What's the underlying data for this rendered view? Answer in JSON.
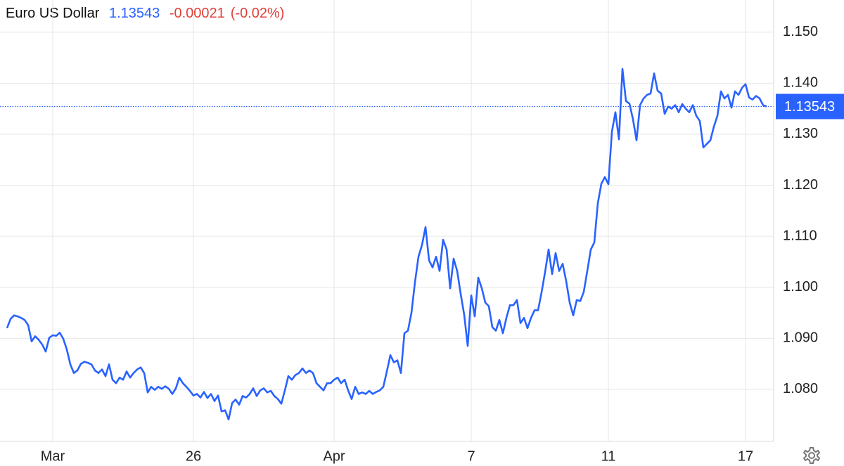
{
  "chart_data": {
    "type": "line",
    "title": "Euro US Dollar",
    "last_value": 1.13543,
    "change": -0.00021,
    "change_percent_label": "(-0.02%)",
    "categories": [
      null,
      null,
      null,
      null,
      null,
      null,
      null,
      null,
      null,
      null,
      null,
      null,
      null,
      "Mar",
      null,
      null,
      null,
      null,
      null,
      null,
      null,
      null,
      null,
      null,
      null,
      null,
      null,
      null,
      null,
      null,
      null,
      null,
      null,
      null,
      null,
      null,
      null,
      null,
      null,
      null,
      null,
      null,
      null,
      null,
      null,
      null,
      null,
      null,
      null,
      null,
      null,
      null,
      null,
      "26",
      null,
      null,
      null,
      null,
      null,
      null,
      null,
      null,
      null,
      null,
      null,
      null,
      null,
      null,
      null,
      null,
      null,
      null,
      null,
      null,
      null,
      null,
      null,
      null,
      null,
      null,
      null,
      null,
      null,
      null,
      null,
      null,
      null,
      null,
      null,
      null,
      null,
      null,
      null,
      "Apr",
      null,
      null,
      null,
      null,
      null,
      null,
      null,
      null,
      null,
      null,
      null,
      null,
      null,
      null,
      null,
      null,
      null,
      null,
      null,
      null,
      null,
      null,
      null,
      null,
      null,
      null,
      null,
      null,
      null,
      null,
      null,
      null,
      null,
      null,
      null,
      null,
      null,
      null,
      "7",
      null,
      null,
      null,
      null,
      null,
      null,
      null,
      null,
      null,
      null,
      null,
      null,
      null,
      null,
      null,
      null,
      null,
      null,
      null,
      null,
      null,
      null,
      null,
      null,
      null,
      null,
      null,
      null,
      null,
      null,
      null,
      null,
      null,
      null,
      null,
      null,
      null,
      null,
      "11",
      null,
      null,
      null,
      null,
      null,
      null,
      null,
      null,
      null,
      null,
      null,
      null,
      null,
      null,
      null,
      null,
      null,
      null,
      null,
      null,
      null,
      null,
      null,
      null,
      null,
      null,
      null,
      null,
      null,
      null,
      null,
      null,
      null,
      null,
      null,
      null,
      null,
      null,
      "17",
      null,
      null,
      null,
      null,
      null,
      null
    ],
    "series": [
      {
        "name": "Euro US Dollar",
        "color": "#2962ff",
        "values": [
          1.092,
          1.0938,
          1.0945,
          1.0943,
          1.094,
          1.0936,
          1.0926,
          1.0894,
          1.0904,
          1.0897,
          1.0888,
          1.0874,
          1.0901,
          1.0906,
          1.0905,
          1.0911,
          1.0899,
          1.0878,
          1.0849,
          1.0832,
          1.0837,
          1.085,
          1.0854,
          1.0852,
          1.0849,
          1.0837,
          1.0832,
          1.0839,
          1.0826,
          1.0849,
          1.0819,
          1.0812,
          1.0823,
          1.0819,
          1.0835,
          1.0823,
          1.0832,
          1.0839,
          1.0843,
          1.0832,
          1.0794,
          1.0805,
          1.0799,
          1.0805,
          1.0801,
          1.0806,
          1.0801,
          1.0791,
          1.0802,
          1.0823,
          1.0812,
          1.0805,
          1.0797,
          1.0788,
          1.0791,
          1.0784,
          1.0795,
          1.0783,
          1.0791,
          1.0777,
          1.0788,
          1.0757,
          1.0759,
          1.0741,
          1.0773,
          1.078,
          1.077,
          1.0787,
          1.0784,
          1.0791,
          1.0802,
          1.0787,
          1.0798,
          1.0802,
          1.0794,
          1.0797,
          1.0787,
          1.0781,
          1.0772,
          1.0798,
          1.0826,
          1.0819,
          1.0828,
          1.0832,
          1.0841,
          1.0832,
          1.0837,
          1.0832,
          1.0812,
          1.0805,
          1.0798,
          1.0812,
          1.0812,
          1.0819,
          1.0823,
          1.0812,
          1.0819,
          1.0798,
          1.0781,
          1.0805,
          1.0791,
          1.0794,
          1.0791,
          1.0797,
          1.0791,
          1.0795,
          1.0798,
          1.0805,
          1.0835,
          1.0867,
          1.0853,
          1.0857,
          1.0832,
          1.091,
          1.0915,
          1.095,
          1.101,
          1.106,
          1.1083,
          1.1118,
          1.1053,
          1.1039,
          1.106,
          1.1032,
          1.1093,
          1.1074,
          1.0998,
          1.1056,
          1.1032,
          1.0987,
          1.0946,
          1.0885,
          1.0984,
          1.0943,
          1.1019,
          1.0998,
          1.097,
          1.0963,
          1.0922,
          1.0915,
          1.0936,
          1.091,
          1.094,
          1.0965,
          1.0965,
          1.0975,
          1.093,
          1.094,
          1.092,
          1.094,
          1.0955,
          1.0955,
          1.099,
          1.103,
          1.1074,
          1.1026,
          1.1067,
          1.1032,
          1.1046,
          1.1012,
          1.097,
          1.0945,
          1.0975,
          1.0973,
          1.0991,
          1.1032,
          1.1074,
          1.1088,
          1.1165,
          1.1203,
          1.1216,
          1.1202,
          1.1305,
          1.1343,
          1.129,
          1.1428,
          1.1365,
          1.136,
          1.1329,
          1.1288,
          1.1357,
          1.137,
          1.1377,
          1.138,
          1.1419,
          1.1385,
          1.138,
          1.134,
          1.1354,
          1.135,
          1.1357,
          1.1343,
          1.1359,
          1.135,
          1.1343,
          1.1357,
          1.1336,
          1.1326,
          1.1274,
          1.1281,
          1.1288,
          1.1315,
          1.1336,
          1.1384,
          1.137,
          1.1377,
          1.1352,
          1.1384,
          1.1377,
          1.1391,
          1.1398,
          1.1372,
          1.1368,
          1.1375,
          1.137,
          1.1357,
          1.1354
        ]
      }
    ],
    "ylim": [
      1.0698,
      1.1563
    ],
    "yticks": [
      {
        "value": 1.08,
        "label": "1.080"
      },
      {
        "value": 1.09,
        "label": "1.090"
      },
      {
        "value": 1.1,
        "label": "1.100"
      },
      {
        "value": 1.11,
        "label": "1.110"
      },
      {
        "value": 1.12,
        "label": "1.120"
      },
      {
        "value": 1.13,
        "label": "1.130"
      },
      {
        "value": 1.14,
        "label": "1.140"
      },
      {
        "value": 1.15,
        "label": "1.150"
      }
    ],
    "grid": true,
    "header_colors": {
      "price": "#2962ff",
      "change": "#e0403a"
    }
  }
}
